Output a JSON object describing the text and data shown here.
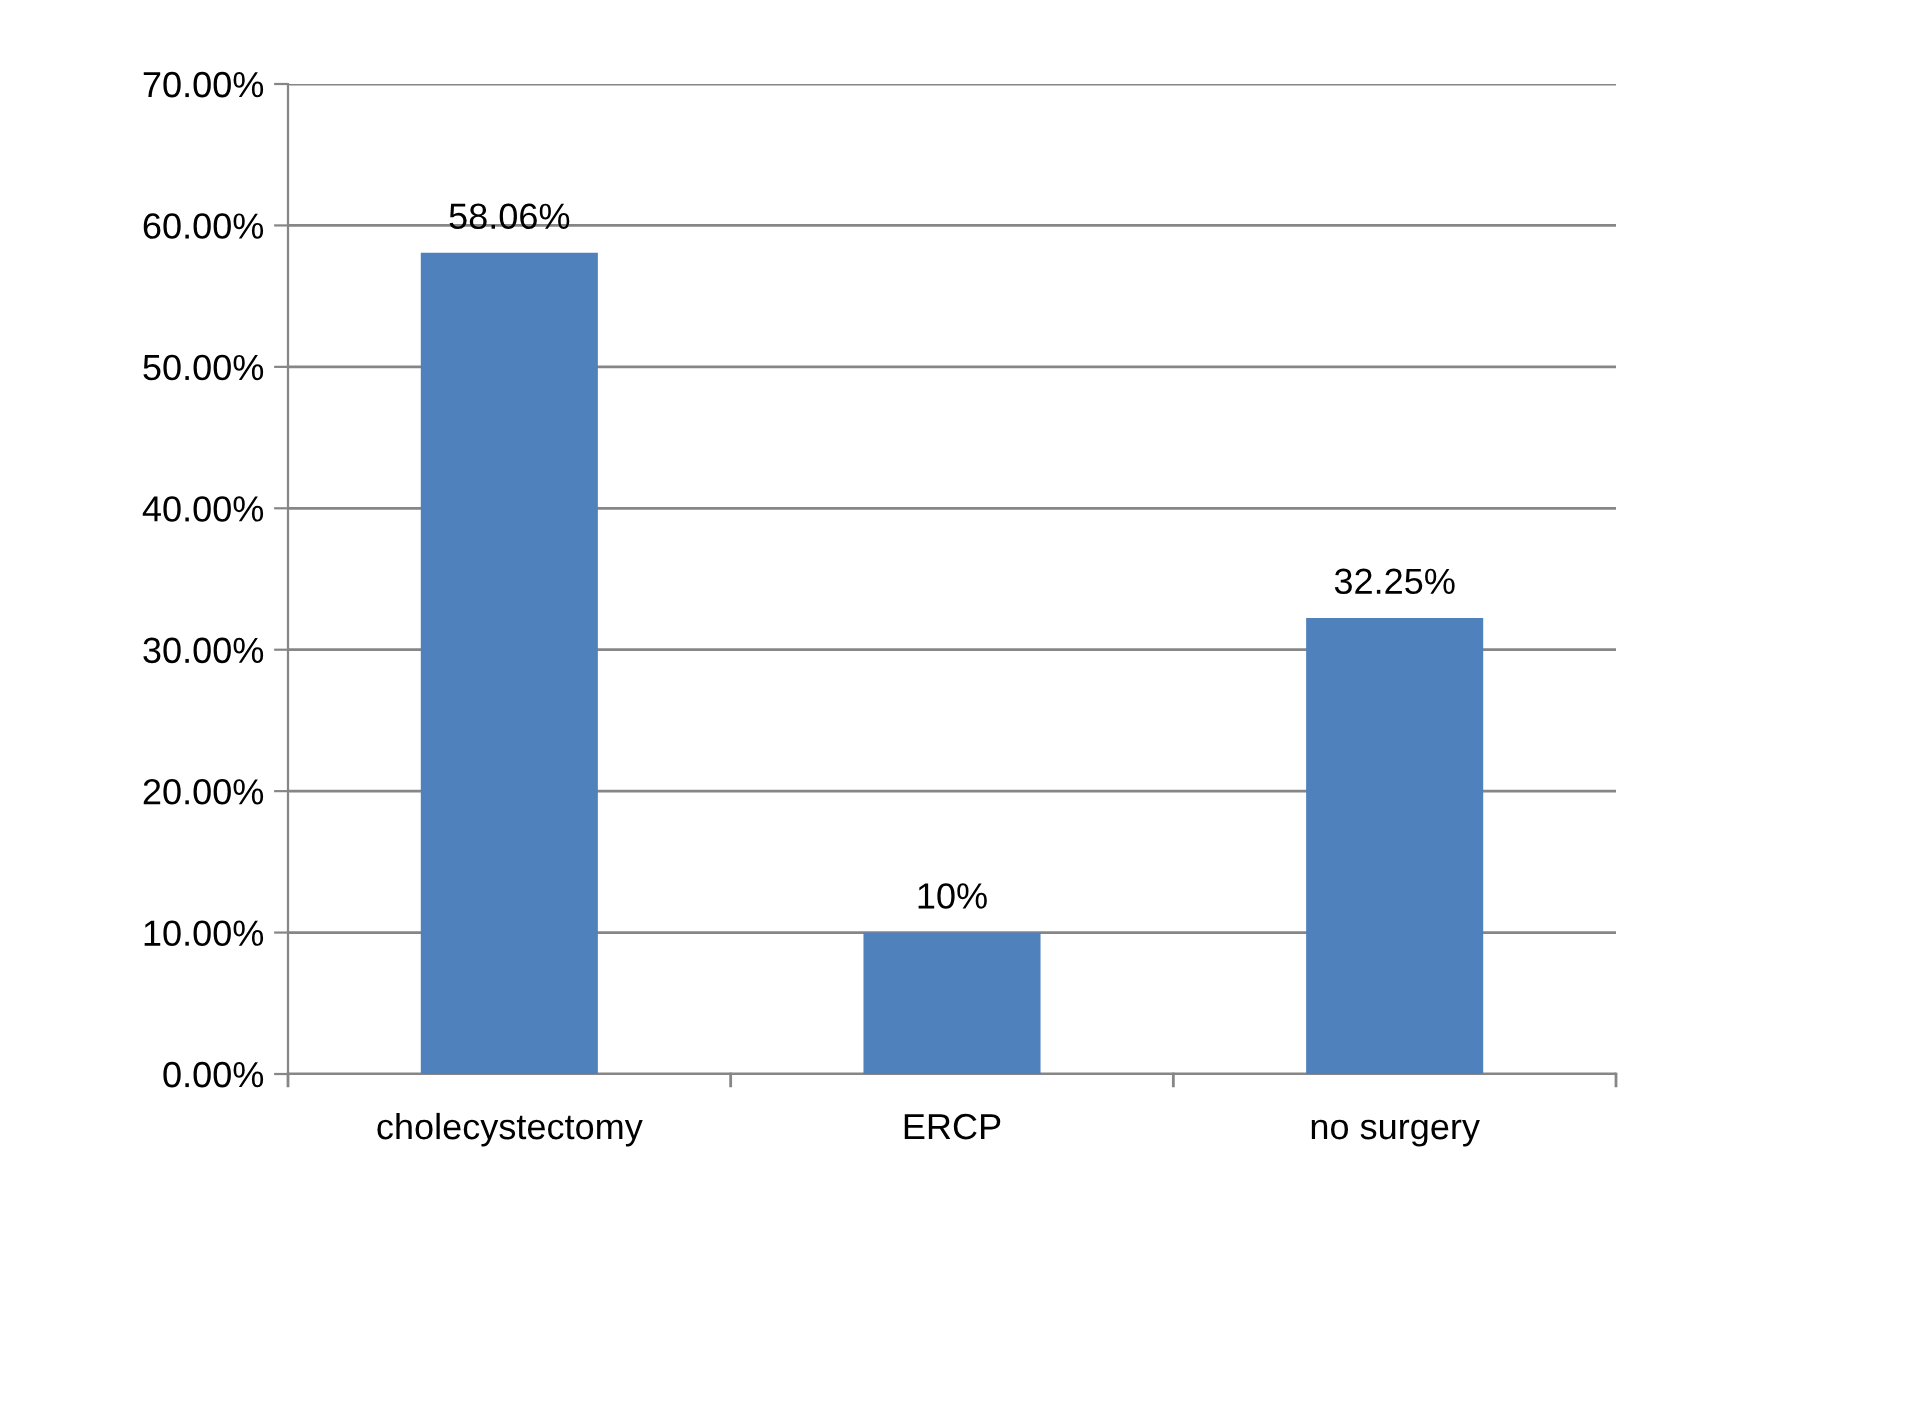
{
  "chart_data": {
    "type": "bar",
    "categories": [
      "cholecystectomy",
      "ERCP",
      "no surgery"
    ],
    "values": [
      58.06,
      10,
      32.25
    ],
    "value_labels": [
      "58.06%",
      "10%",
      "32.25%"
    ],
    "color": "#4f81bd",
    "ylim": [
      0,
      70
    ],
    "yticks": [
      {
        "value": 0,
        "label": "0.00%"
      },
      {
        "value": 10,
        "label": "10.00%"
      },
      {
        "value": 20,
        "label": "20.00%"
      },
      {
        "value": 30,
        "label": "30.00%"
      },
      {
        "value": 40,
        "label": "40.00%"
      },
      {
        "value": 50,
        "label": "50.00%"
      },
      {
        "value": 60,
        "label": "60.00%"
      },
      {
        "value": 70,
        "label": "70.00%"
      }
    ],
    "grid": "y"
  }
}
